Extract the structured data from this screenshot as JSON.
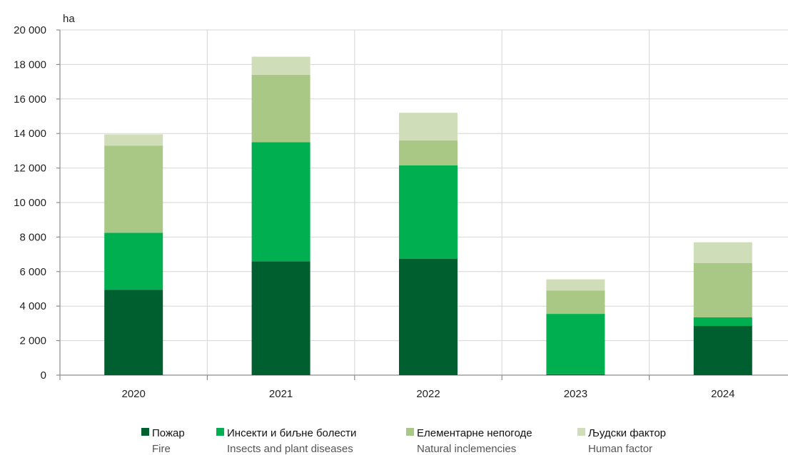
{
  "chart_data": {
    "type": "bar",
    "stacked": true,
    "categories": [
      "2020",
      "2021",
      "2022",
      "2023",
      "2024"
    ],
    "series": [
      {
        "name": "Пожар",
        "subtitle": "Fire",
        "color": "#005f2e",
        "values": [
          4950,
          6600,
          6750,
          50,
          2850
        ]
      },
      {
        "name": "Инсекти и биљне болести",
        "subtitle": "Insects and plant diseases",
        "color": "#00b050",
        "values": [
          3300,
          6900,
          5400,
          3500,
          500
        ]
      },
      {
        "name": "Елементарне непогоде",
        "subtitle": "Natural inclemencies",
        "color": "#a9c785",
        "values": [
          5050,
          3900,
          1450,
          1350,
          3150
        ]
      },
      {
        "name": "Људски фактор",
        "subtitle": "Human factor",
        "color": "#cfddb8",
        "values": [
          650,
          1050,
          1600,
          650,
          1200
        ]
      }
    ],
    "ylabel": "ha",
    "ylim": [
      0,
      20000
    ],
    "yticks": [
      0,
      2000,
      4000,
      6000,
      8000,
      10000,
      12000,
      14000,
      16000,
      18000,
      20000
    ],
    "ytick_labels": [
      "0",
      "2 000",
      "4 000",
      "6 000",
      "8 000",
      "10 000",
      "12 000",
      "14 000",
      "16 000",
      "18 000",
      "20 000"
    ],
    "grid": "on",
    "legend_position": "bottom"
  }
}
